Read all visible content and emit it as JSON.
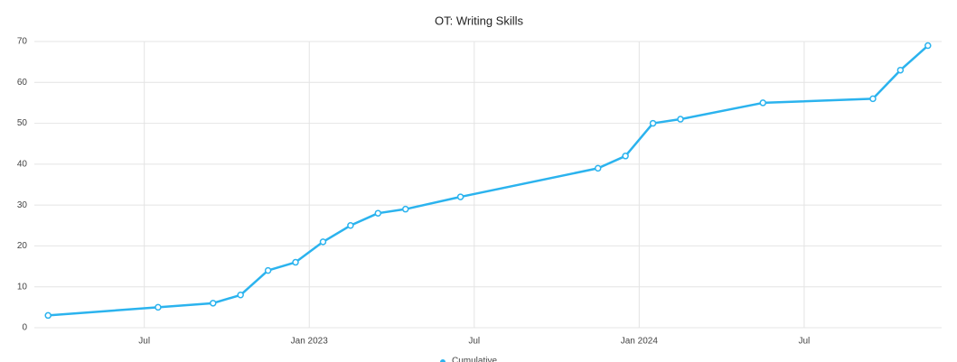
{
  "chart_data": {
    "type": "line",
    "title": "OT: Writing Skills",
    "x": [
      "2022-03",
      "2022-07",
      "2022-09",
      "2022-10",
      "2022-11",
      "2022-12",
      "2023-01",
      "2023-02",
      "2023-03",
      "2023-04",
      "2023-06",
      "2023-11",
      "2023-12",
      "2024-01",
      "2024-02",
      "2024-05",
      "2024-09",
      "2024-10",
      "2024-11"
    ],
    "series": [
      {
        "name": "Cumulative",
        "color": "#2bb3ee",
        "values": [
          3,
          5,
          6,
          8,
          14,
          16,
          21,
          25,
          28,
          29,
          32,
          39,
          42,
          50,
          51,
          55,
          56,
          63,
          69
        ]
      }
    ],
    "xlim": [
      "2022-03",
      "2024-12"
    ],
    "xticks": [
      {
        "value": "2022-07",
        "label": "Jul"
      },
      {
        "value": "2023-01",
        "label": "Jan 2023"
      },
      {
        "value": "2023-07",
        "label": "Jul"
      },
      {
        "value": "2024-01",
        "label": "Jan 2024"
      },
      {
        "value": "2024-07",
        "label": "Jul"
      }
    ],
    "ylim": [
      0,
      70
    ],
    "yticks": [
      0,
      10,
      20,
      30,
      40,
      50,
      60,
      70
    ],
    "grid": true
  }
}
